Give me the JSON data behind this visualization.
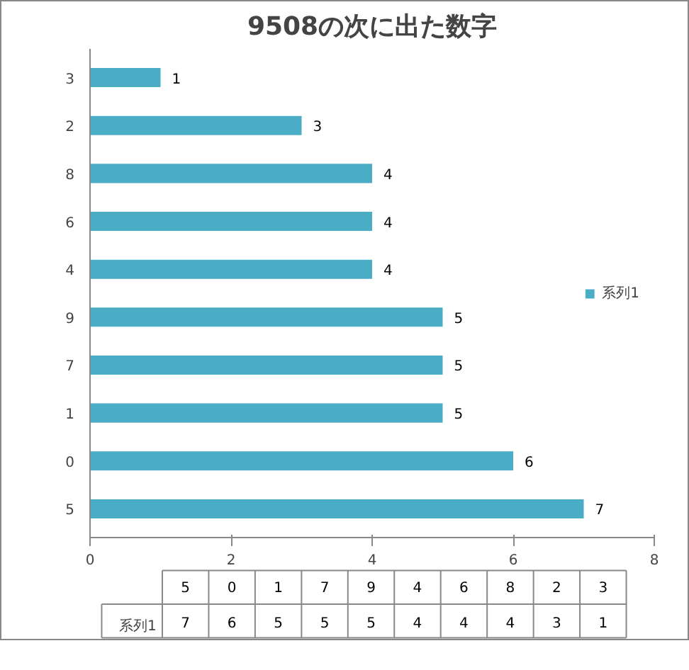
{
  "chart_data": {
    "type": "bar",
    "orientation": "horizontal",
    "title": "9508の次に出た数字",
    "categories": [
      "3",
      "2",
      "8",
      "6",
      "4",
      "9",
      "7",
      "1",
      "0",
      "5"
    ],
    "series": [
      {
        "name": "系列1",
        "color": "#4bacc6",
        "values": [
          1,
          3,
          4,
          4,
          4,
          5,
          5,
          5,
          6,
          7
        ]
      }
    ],
    "xlim": [
      0,
      8
    ],
    "xticks": [
      0,
      2,
      4,
      6,
      8
    ],
    "grid": false,
    "legend": "right",
    "data_labels": true
  }
}
